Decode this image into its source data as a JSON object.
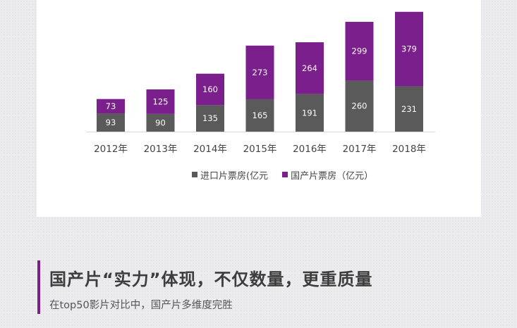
{
  "chart_data": {
    "type": "bar",
    "stacked": true,
    "categories": [
      "2012年",
      "2013年",
      "2014年",
      "2015年",
      "2016年",
      "2017年",
      "2018年"
    ],
    "series": [
      {
        "name": "进口片票房(亿元",
        "color": "#5a5a5a",
        "values": [
          93,
          90,
          135,
          165,
          191,
          260,
          231
        ]
      },
      {
        "name": "国产片票房（亿元）",
        "color": "#7b1f8c",
        "values": [
          73,
          125,
          160,
          273,
          264,
          299,
          379
        ]
      }
    ],
    "legend_position": "bottom",
    "grid": false,
    "ylim": [
      0,
      620
    ]
  },
  "section": {
    "title": "国产片“实力”体现，不仅数量，更重质量",
    "subtitle": "在top50影片对比中，国产片多维度完胜"
  },
  "colors": {
    "accent": "#7b1f8c",
    "imported": "#5a5a5a",
    "domestic": "#7b1f8c"
  }
}
